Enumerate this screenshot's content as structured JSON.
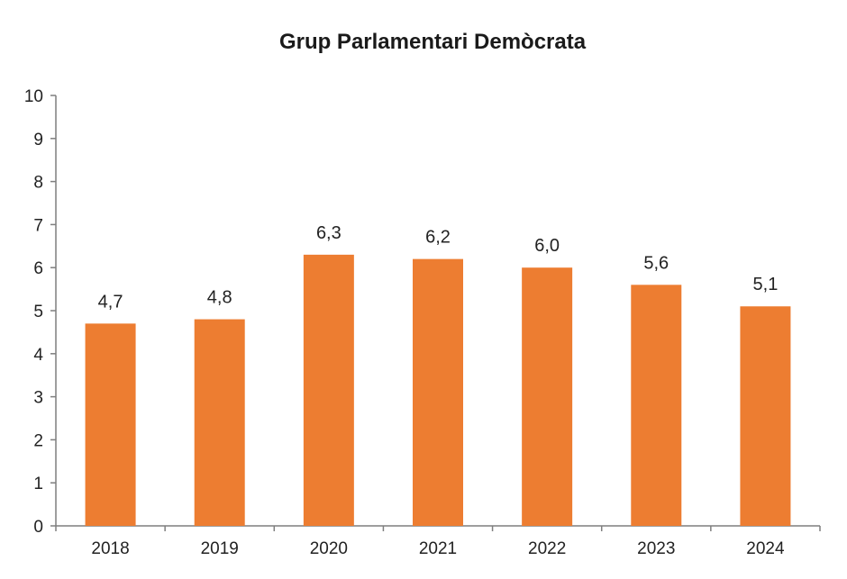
{
  "chart_data": {
    "type": "bar",
    "title": "Grup Parlamentari Demòcrata",
    "xlabel": "",
    "ylabel": "",
    "categories": [
      "2018",
      "2019",
      "2020",
      "2021",
      "2022",
      "2023",
      "2024"
    ],
    "values": [
      4.7,
      4.8,
      6.3,
      6.2,
      6.0,
      5.6,
      5.1
    ],
    "data_labels": [
      "4,7",
      "4,8",
      "6,3",
      "6,2",
      "6,0",
      "5,6",
      "5,1"
    ],
    "ylim": [
      0,
      10
    ],
    "yticks": [
      "0",
      "1",
      "2",
      "3",
      "4",
      "5",
      "6",
      "7",
      "8",
      "9",
      "10"
    ],
    "grid": false,
    "legend": "none",
    "bar_color": "#ED7D31",
    "axis_color": "#7f7f7f"
  }
}
